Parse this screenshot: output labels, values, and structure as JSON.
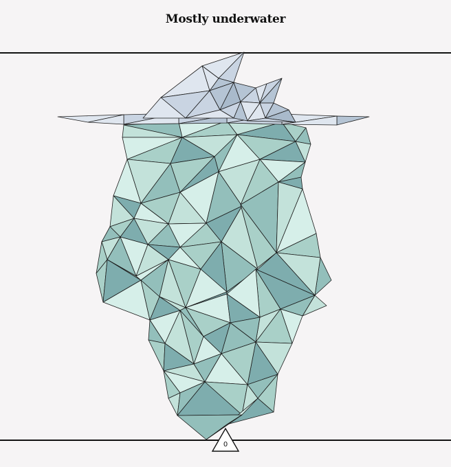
{
  "title": "Mostly underwater",
  "marker": {
    "label": "0"
  },
  "colors": {
    "background": "#f6f4f5",
    "ice_above": [
      "#dfe6ef",
      "#c9d4e2",
      "#b5c4d4",
      "#a9bacb"
    ],
    "ice_below": [
      "#d6efe9",
      "#c3e2da",
      "#a9d0c8",
      "#93bfbb",
      "#7eadae",
      "#9fc8c3"
    ],
    "stroke": "#1b1b1b"
  }
}
